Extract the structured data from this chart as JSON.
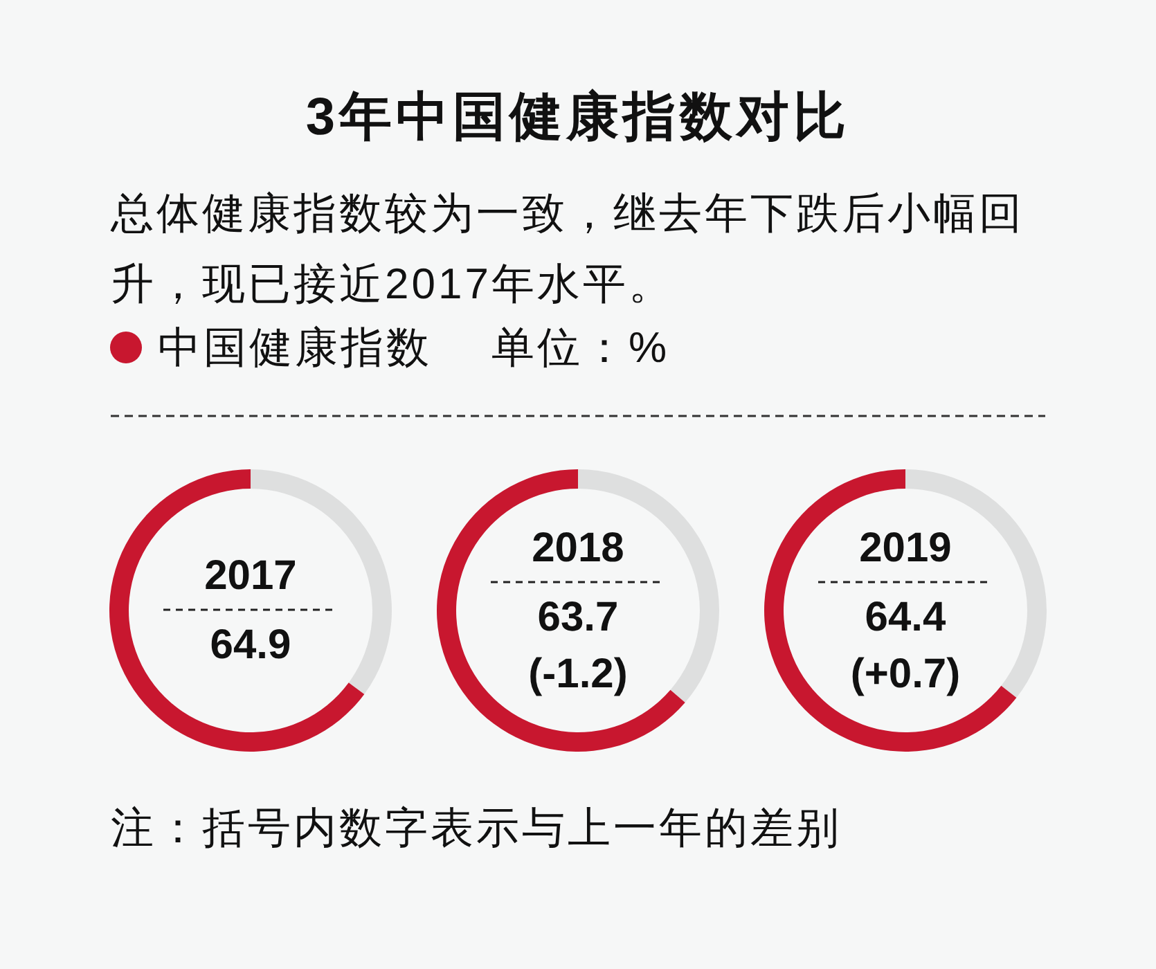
{
  "chart_data": [
    {
      "type": "other",
      "title": "3年中国健康指数对比",
      "subtitle": "总体健康指数较为一致，继去年下跌后小幅回升，现已接近2017年水平。",
      "annotations": [
        "单位：%",
        "注：括号内数字表示与上一年的差别"
      ]
    },
    {
      "type": "donut",
      "title": "2017",
      "categories": [
        null,
        "中国健康指数"
      ],
      "values": [
        35.1,
        64.9
      ],
      "colors": [
        "#dedfdf",
        "#c8172f"
      ],
      "value_labels": [
        null,
        "64.9"
      ],
      "legend": "top"
    },
    {
      "type": "donut",
      "title": "2018",
      "categories": [
        null,
        null
      ],
      "values": [
        36.3,
        63.7
      ],
      "colors": [
        "#dedfdf",
        "#c8172f"
      ],
      "value_labels": [
        null,
        "63.7"
      ],
      "annotations": [
        "(-1.2)"
      ]
    },
    {
      "type": "donut",
      "title": "2019",
      "categories": [
        null,
        null
      ],
      "values": [
        35.6,
        64.4
      ],
      "colors": [
        "#dedfdf",
        "#c8172f"
      ],
      "value_labels": [
        null,
        "64.4"
      ],
      "annotations": [
        "(+0.7)"
      ]
    }
  ]
}
